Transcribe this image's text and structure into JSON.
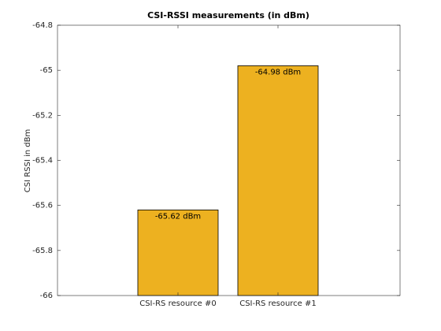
{
  "chart_data": {
    "type": "bar",
    "title": "CSI-RSSI measurements (in dBm)",
    "ylabel": "CSI RSSI in dBm",
    "categories": [
      "CSI-RS resource #0",
      "CSI-RS resource #1"
    ],
    "values": [
      -65.62,
      -64.98
    ],
    "value_labels": [
      "-65.62 dBm",
      "-64.98 dBm"
    ],
    "color": "#edb120",
    "ylim": [
      -66,
      -64.8
    ],
    "yticks": [
      -66,
      -65.8,
      -65.6,
      -65.4,
      -65.2,
      -65,
      -64.8
    ]
  }
}
